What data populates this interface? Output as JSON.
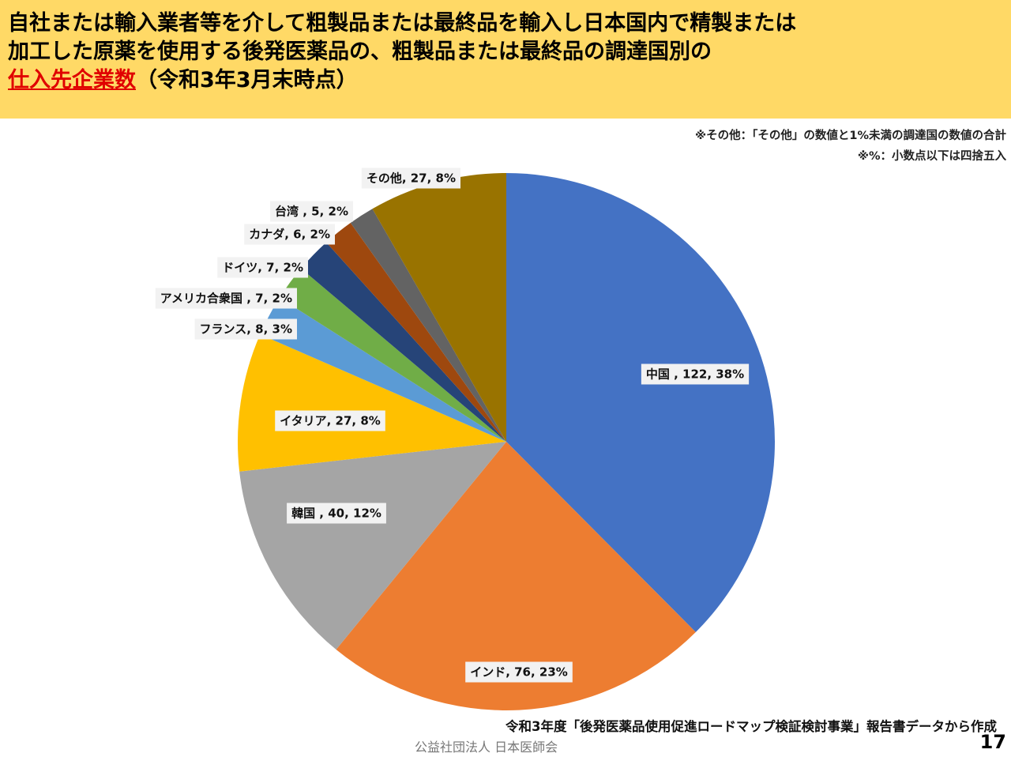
{
  "header": {
    "title_line1": "自社または輸入業者等を介して粗製品または最終品を輸入し日本国内で精製または",
    "title_line2": "加工した原薬を使用する後発医薬品の、粗製品または最終品の調達国別の",
    "title_highlight": "仕入先企業数",
    "title_suffix": "（令和3年3月末時点）",
    "highlight_color": "#E00000",
    "background_color": "#FFD966"
  },
  "notes": {
    "note1": "※その他：「その他」の数値と1%未満の調達国の数値の合計",
    "note2": "※%：小数点以下は四捨五入"
  },
  "chart_data": {
    "type": "pie",
    "start": "top",
    "direction": "clockwise",
    "slices": [
      {
        "name": "中国",
        "value": 122,
        "percent": 38,
        "label": "中国 , 122, 38%",
        "color": "#4472C4"
      },
      {
        "name": "インド",
        "value": 76,
        "percent": 23,
        "label": "インド, 76, 23%",
        "color": "#ED7D31"
      },
      {
        "name": "韓国",
        "value": 40,
        "percent": 12,
        "label": "韓国 , 40, 12%",
        "color": "#A5A5A5"
      },
      {
        "name": "イタリア",
        "value": 27,
        "percent": 8,
        "label": "イタリア, 27, 8%",
        "color": "#FFC000"
      },
      {
        "name": "フランス",
        "value": 8,
        "percent": 3,
        "label": "フランス, 8, 3%",
        "color": "#5B9BD5"
      },
      {
        "name": "アメリカ合衆国",
        "value": 7,
        "percent": 2,
        "label": "アメリカ合衆国 , 7, 2%",
        "color": "#70AD47"
      },
      {
        "name": "ドイツ",
        "value": 7,
        "percent": 2,
        "label": "ドイツ, 7, 2%",
        "color": "#264478"
      },
      {
        "name": "カナダ",
        "value": 6,
        "percent": 2,
        "label": "カナダ, 6, 2%",
        "color": "#9E480E"
      },
      {
        "name": "台湾",
        "value": 5,
        "percent": 2,
        "label": "台湾 , 5, 2%",
        "color": "#636363"
      },
      {
        "name": "その他",
        "value": 27,
        "percent": 8,
        "label": "その他, 27, 8%",
        "color": "#997300"
      }
    ]
  },
  "footer": {
    "source": "令和3年度「後発医薬品使用促進ロードマップ検証検討事業」報告書データから作成",
    "organization": "公益社団法人 日本医師会",
    "page_number": "17"
  }
}
